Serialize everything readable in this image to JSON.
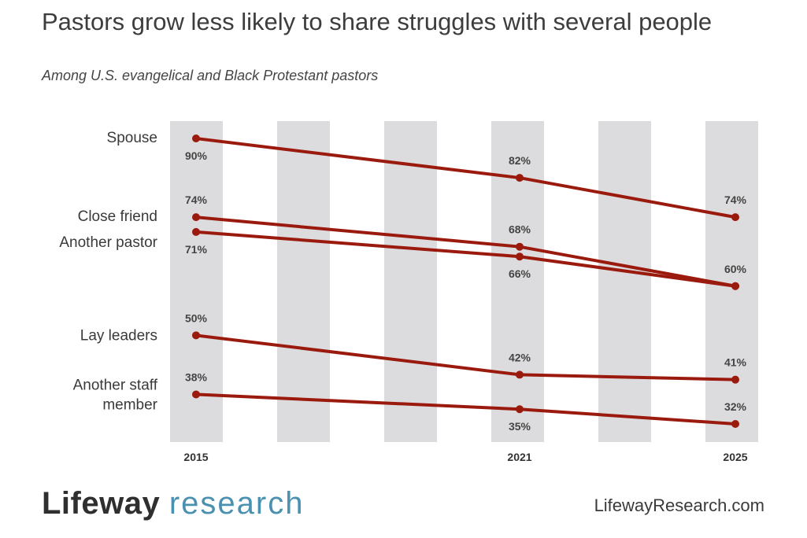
{
  "title": "Pastors grow less likely to share struggles with several people",
  "subtitle": "Among U.S. evangelical and Black Protestant pastors",
  "footer": {
    "brand_primary": "Lifeway",
    "brand_secondary": "research",
    "url": "LifewayResearch.com"
  },
  "colors": {
    "series": "#9b1a0e",
    "band": "#dcdcde",
    "brand_accent": "#4a90b0"
  },
  "chart_data": {
    "type": "line",
    "x": [
      2015,
      2021,
      2025
    ],
    "x_tick_labels": [
      "2015",
      "2021",
      "2025"
    ],
    "ylim": [
      25,
      95
    ],
    "grid": false,
    "series": [
      {
        "name": "Spouse",
        "label_lines": [
          "Spouse"
        ],
        "values": [
          90,
          82,
          74
        ],
        "label_pos": [
          "below",
          "above",
          "above"
        ]
      },
      {
        "name": "Close friend",
        "label_lines": [
          "Close friend"
        ],
        "values": [
          74,
          68,
          60
        ],
        "label_pos": [
          "above",
          "above",
          "above"
        ]
      },
      {
        "name": "Another pastor",
        "label_lines": [
          "Another pastor"
        ],
        "values": [
          71,
          66,
          60
        ],
        "label_pos": [
          "below",
          "below",
          "none"
        ]
      },
      {
        "name": "Lay leaders",
        "label_lines": [
          "Lay leaders"
        ],
        "values": [
          50,
          42,
          41
        ],
        "label_pos": [
          "above",
          "above",
          "above"
        ]
      },
      {
        "name": "Another staff member",
        "label_lines": [
          "Another staff",
          "member"
        ],
        "values": [
          38,
          35,
          32
        ],
        "label_pos": [
          "above",
          "below",
          "above"
        ]
      }
    ]
  }
}
